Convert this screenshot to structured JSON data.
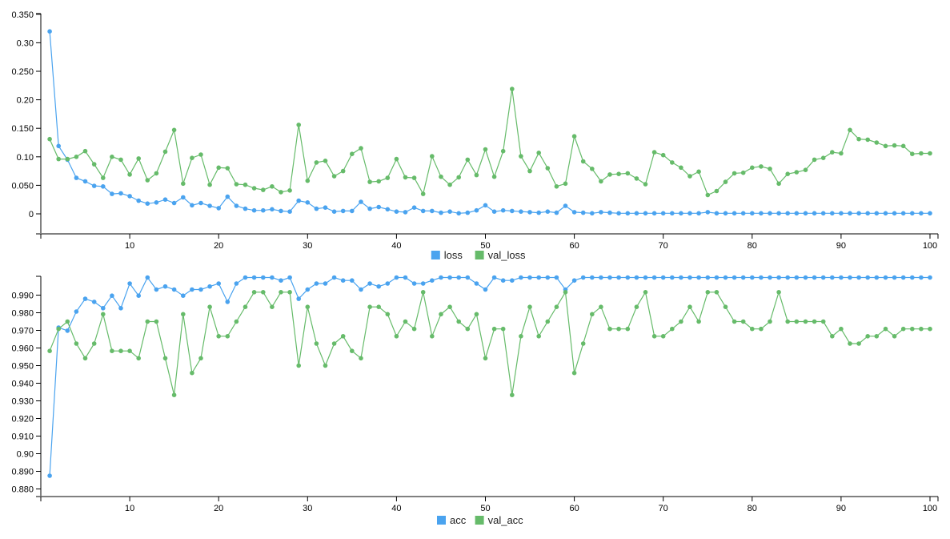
{
  "colors": {
    "series_a": "#4aa3ef",
    "series_b": "#66bb6a",
    "axis": "#000000",
    "baseline": "#808080"
  },
  "chart_data": [
    {
      "type": "line",
      "title": "",
      "xlabel": "",
      "ylabel": "",
      "xlim": [
        0,
        100
      ],
      "ylim": [
        -0.035,
        0.35
      ],
      "grid": false,
      "legend_position": "bottom",
      "x_ticks": [
        "10",
        "20",
        "30",
        "40",
        "50",
        "60",
        "70",
        "80",
        "90",
        "100"
      ],
      "y_ticks": [
        "0",
        "0.050",
        "0.10",
        "0.150",
        "0.20",
        "0.250",
        "0.30",
        "0.350"
      ],
      "legend": [
        "loss",
        "val_loss"
      ],
      "x": [
        1,
        2,
        3,
        4,
        5,
        6,
        7,
        8,
        9,
        10,
        11,
        12,
        13,
        14,
        15,
        16,
        17,
        18,
        19,
        20,
        21,
        22,
        23,
        24,
        25,
        26,
        27,
        28,
        29,
        30,
        31,
        32,
        33,
        34,
        35,
        36,
        37,
        38,
        39,
        40,
        41,
        42,
        43,
        44,
        45,
        46,
        47,
        48,
        49,
        50,
        51,
        52,
        53,
        54,
        55,
        56,
        57,
        58,
        59,
        60,
        61,
        62,
        63,
        64,
        65,
        66,
        67,
        68,
        69,
        70,
        71,
        72,
        73,
        74,
        75,
        76,
        77,
        78,
        79,
        80,
        81,
        82,
        83,
        84,
        85,
        86,
        87,
        88,
        89,
        90,
        91,
        92,
        93,
        94,
        95,
        96,
        97,
        98,
        99,
        100
      ],
      "series": [
        {
          "name": "loss",
          "values": [
            0.32,
            0.119,
            0.095,
            0.063,
            0.057,
            0.049,
            0.048,
            0.035,
            0.036,
            0.031,
            0.023,
            0.018,
            0.02,
            0.025,
            0.019,
            0.029,
            0.015,
            0.019,
            0.014,
            0.01,
            0.03,
            0.014,
            0.009,
            0.006,
            0.006,
            0.008,
            0.005,
            0.004,
            0.023,
            0.02,
            0.009,
            0.011,
            0.004,
            0.005,
            0.005,
            0.021,
            0.009,
            0.012,
            0.008,
            0.004,
            0.003,
            0.011,
            0.005,
            0.005,
            0.002,
            0.004,
            0.001,
            0.002,
            0.006,
            0.015,
            0.004,
            0.006,
            0.005,
            0.004,
            0.003,
            0.002,
            0.004,
            0.002,
            0.014,
            0.003,
            0.002,
            0.001,
            0.003,
            0.002,
            0.001,
            0.001,
            0.001,
            0.001,
            0.001,
            0.001,
            0.001,
            0.001,
            0.001,
            0.001,
            0.003,
            0.001,
            0.001,
            0.001,
            0.001,
            0.001,
            0.001,
            0.001,
            0.001,
            0.001,
            0.001,
            0.001,
            0.001,
            0.001,
            0.001,
            0.001,
            0.001,
            0.001,
            0.001,
            0.001,
            0.001,
            0.001,
            0.001,
            0.001,
            0.001,
            0.001
          ]
        },
        {
          "name": "val_loss",
          "values": [
            0.131,
            0.096,
            0.096,
            0.1,
            0.11,
            0.087,
            0.063,
            0.1,
            0.095,
            0.069,
            0.097,
            0.059,
            0.071,
            0.109,
            0.147,
            0.053,
            0.098,
            0.104,
            0.051,
            0.081,
            0.08,
            0.052,
            0.051,
            0.045,
            0.042,
            0.048,
            0.038,
            0.041,
            0.156,
            0.058,
            0.09,
            0.093,
            0.066,
            0.075,
            0.105,
            0.115,
            0.056,
            0.057,
            0.063,
            0.096,
            0.064,
            0.063,
            0.035,
            0.101,
            0.065,
            0.051,
            0.064,
            0.095,
            0.068,
            0.113,
            0.065,
            0.11,
            0.219,
            0.101,
            0.075,
            0.107,
            0.08,
            0.048,
            0.053,
            0.136,
            0.092,
            0.079,
            0.057,
            0.069,
            0.07,
            0.071,
            0.062,
            0.052,
            0.108,
            0.103,
            0.09,
            0.081,
            0.066,
            0.074,
            0.033,
            0.04,
            0.056,
            0.071,
            0.072,
            0.081,
            0.083,
            0.079,
            0.053,
            0.07,
            0.073,
            0.077,
            0.095,
            0.098,
            0.108,
            0.106,
            0.147,
            0.131,
            0.13,
            0.125,
            0.119,
            0.12,
            0.119,
            0.105,
            0.106,
            0.106
          ]
        }
      ]
    },
    {
      "type": "line",
      "title": "",
      "xlabel": "",
      "ylabel": "",
      "xlim": [
        0,
        100
      ],
      "ylim": [
        0.8775,
        1.0
      ],
      "grid": false,
      "legend_position": "bottom",
      "x_ticks": [
        "10",
        "20",
        "30",
        "40",
        "50",
        "60",
        "70",
        "80",
        "90",
        "100"
      ],
      "y_ticks": [
        "0.880",
        "0.890",
        "0.90",
        "0.910",
        "0.920",
        "0.930",
        "0.940",
        "0.950",
        "0.960",
        "0.970",
        "0.980",
        "0.990"
      ],
      "legend": [
        "acc",
        "val_acc"
      ],
      "x": [
        1,
        2,
        3,
        4,
        5,
        6,
        7,
        8,
        9,
        10,
        11,
        12,
        13,
        14,
        15,
        16,
        17,
        18,
        19,
        20,
        21,
        22,
        23,
        24,
        25,
        26,
        27,
        28,
        29,
        30,
        31,
        32,
        33,
        34,
        35,
        36,
        37,
        38,
        39,
        40,
        41,
        42,
        43,
        44,
        45,
        46,
        47,
        48,
        49,
        50,
        51,
        52,
        53,
        54,
        55,
        56,
        57,
        58,
        59,
        60,
        61,
        62,
        63,
        64,
        65,
        66,
        67,
        68,
        69,
        70,
        71,
        72,
        73,
        74,
        75,
        76,
        77,
        78,
        79,
        80,
        81,
        82,
        83,
        84,
        85,
        86,
        87,
        88,
        89,
        90,
        91,
        92,
        93,
        94,
        95,
        96,
        97,
        98,
        99,
        100
      ],
      "series": [
        {
          "name": "acc",
          "values": [
            0.8875,
            0.9716,
            0.9698,
            0.9807,
            0.9879,
            0.9862,
            0.9826,
            0.9897,
            0.9826,
            0.9966,
            0.9897,
            1.0,
            0.9932,
            0.9949,
            0.9932,
            0.9897,
            0.9932,
            0.9932,
            0.9949,
            0.9966,
            0.9862,
            0.9966,
            1.0,
            1.0,
            1.0,
            1.0,
            0.9983,
            1.0,
            0.9879,
            0.9932,
            0.9966,
            0.9966,
            1.0,
            0.9983,
            0.9983,
            0.9932,
            0.9966,
            0.9949,
            0.9966,
            1.0,
            1.0,
            0.9966,
            0.9966,
            0.9983,
            1.0,
            1.0,
            1.0,
            1.0,
            0.9966,
            0.9932,
            1.0,
            0.9983,
            0.9983,
            1.0,
            1.0,
            1.0,
            1.0,
            1.0,
            0.9932,
            0.9983,
            1.0,
            1.0,
            1.0,
            1.0,
            1.0,
            1.0,
            1.0,
            1.0,
            1.0,
            1.0,
            1.0,
            1.0,
            1.0,
            1.0,
            1.0,
            1.0,
            1.0,
            1.0,
            1.0,
            1.0,
            1.0,
            1.0,
            1.0,
            1.0,
            1.0,
            1.0,
            1.0,
            1.0,
            1.0,
            1.0,
            1.0,
            1.0,
            1.0,
            1.0,
            1.0,
            1.0,
            1.0,
            1.0,
            1.0,
            1.0
          ]
        },
        {
          "name": "val_acc",
          "values": [
            0.9583,
            0.9708,
            0.975,
            0.9625,
            0.9542,
            0.9625,
            0.9792,
            0.9583,
            0.9583,
            0.9583,
            0.9542,
            0.975,
            0.975,
            0.9542,
            0.9333,
            0.9792,
            0.9458,
            0.9542,
            0.9833,
            0.9667,
            0.9667,
            0.975,
            0.9833,
            0.9917,
            0.9917,
            0.9833,
            0.9917,
            0.9917,
            0.95,
            0.9833,
            0.9625,
            0.95,
            0.9625,
            0.9667,
            0.9583,
            0.9542,
            0.9833,
            0.9833,
            0.9792,
            0.9667,
            0.975,
            0.9708,
            0.9917,
            0.9667,
            0.9792,
            0.9833,
            0.975,
            0.9708,
            0.9792,
            0.9542,
            0.9708,
            0.9708,
            0.9333,
            0.9667,
            0.9833,
            0.9667,
            0.975,
            0.9833,
            0.9917,
            0.9458,
            0.9625,
            0.9792,
            0.9833,
            0.9708,
            0.9708,
            0.9708,
            0.9833,
            0.9917,
            0.9667,
            0.9667,
            0.9708,
            0.975,
            0.9833,
            0.975,
            0.9917,
            0.9917,
            0.9833,
            0.975,
            0.975,
            0.9708,
            0.9708,
            0.975,
            0.9917,
            0.975,
            0.975,
            0.975,
            0.975,
            0.975,
            0.9667,
            0.9708,
            0.9625,
            0.9625,
            0.9667,
            0.9667,
            0.9708,
            0.9667,
            0.9708,
            0.9708,
            0.9708,
            0.9708
          ]
        }
      ]
    }
  ]
}
